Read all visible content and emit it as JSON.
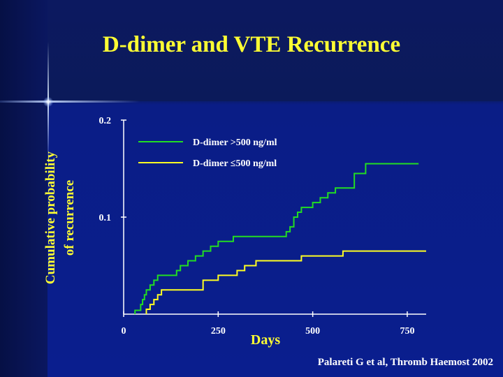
{
  "slide": {
    "title": "D-dimer and VTE Recurrence",
    "citation": "Palareti G et al, Thromb Haemost 2002"
  },
  "colors": {
    "title": "#ffff33",
    "series_high": "#22dd22",
    "series_low": "#ffff22",
    "axis": "#ffffff"
  },
  "chart_data": {
    "type": "line",
    "title": "D-dimer and VTE Recurrence",
    "xlabel": "Days",
    "ylabel_lines": [
      "Cumulative probability",
      "of recurrence"
    ],
    "xlim": [
      0,
      800
    ],
    "ylim": [
      0,
      0.2
    ],
    "x_ticks": [
      0,
      250,
      500,
      750
    ],
    "x_tick_labels": [
      "0",
      "250",
      "500",
      "750"
    ],
    "y_ticks": [
      0.1,
      0.2
    ],
    "y_tick_labels": [
      "0.1",
      "0.2"
    ],
    "grid": false,
    "legend_position": "top-left",
    "step": true,
    "series": [
      {
        "name": "D-dimer >500 ng/ml",
        "color": "#22dd22",
        "x": [
          30,
          45,
          50,
          55,
          60,
          70,
          80,
          90,
          130,
          140,
          150,
          170,
          190,
          210,
          230,
          250,
          290,
          330,
          360,
          400,
          430,
          440,
          450,
          460,
          470,
          500,
          520,
          540,
          560,
          610,
          640,
          780
        ],
        "y": [
          0.004,
          0.01,
          0.015,
          0.02,
          0.025,
          0.03,
          0.035,
          0.04,
          0.04,
          0.045,
          0.05,
          0.055,
          0.06,
          0.065,
          0.07,
          0.075,
          0.08,
          0.08,
          0.08,
          0.08,
          0.085,
          0.09,
          0.1,
          0.105,
          0.11,
          0.115,
          0.12,
          0.125,
          0.13,
          0.145,
          0.155,
          0.155
        ]
      },
      {
        "name": "D-dimer ≤500 ng/ml",
        "color": "#ffff22",
        "x": [
          60,
          70,
          80,
          90,
          100,
          200,
          210,
          250,
          270,
          300,
          320,
          330,
          350,
          410,
          470,
          580,
          620,
          800
        ],
        "y": [
          0.005,
          0.01,
          0.015,
          0.02,
          0.025,
          0.025,
          0.035,
          0.04,
          0.04,
          0.045,
          0.05,
          0.05,
          0.055,
          0.055,
          0.06,
          0.065,
          0.065,
          0.065
        ]
      }
    ]
  }
}
